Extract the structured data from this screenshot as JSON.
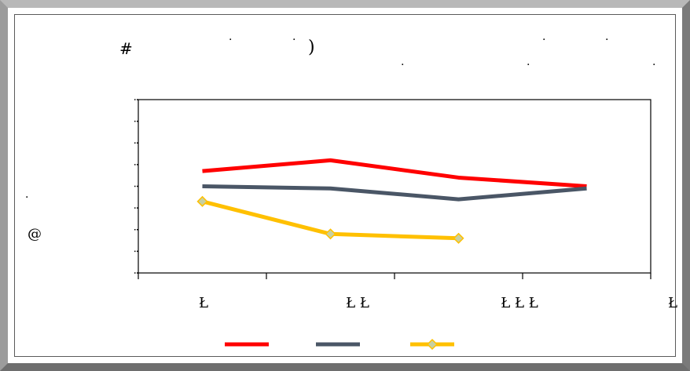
{
  "chart_data": {
    "type": "line",
    "title_glyphs": [
      "#",
      "·",
      "·",
      ")",
      "·",
      "·",
      ".",
      ".",
      "."
    ],
    "ylabel_glyphs": [
      "@",
      "·"
    ],
    "categories": [
      "Ł",
      "Ł Ł",
      "Ł Ł Ł",
      "Ł"
    ],
    "ylim": [
      0,
      8
    ],
    "grid": false,
    "legend": "bottom-center",
    "series": [
      {
        "color": "#ff0000",
        "marker": "none",
        "values": [
          4.7,
          5.2,
          4.4,
          4.0
        ]
      },
      {
        "color": "#4a5666",
        "marker": "none",
        "values": [
          4.0,
          3.9,
          3.4,
          3.9
        ]
      },
      {
        "color": "#ffc000",
        "marker": "diamond",
        "values": [
          3.3,
          1.8,
          1.6,
          null
        ]
      }
    ]
  }
}
